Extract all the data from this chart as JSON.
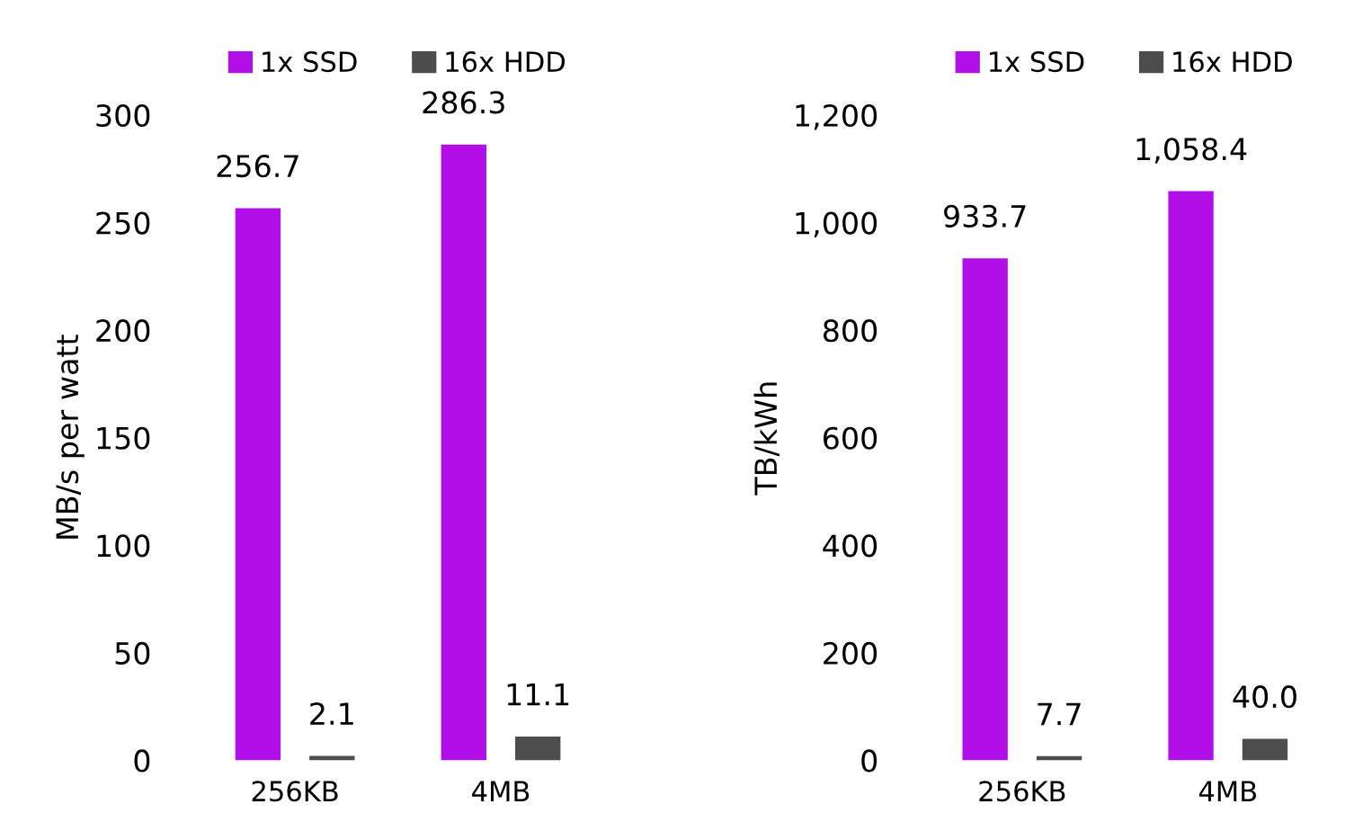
{
  "chart_data": [
    {
      "type": "bar",
      "ylabel": "MB/s per watt",
      "categories": [
        "256KB",
        "4MB"
      ],
      "series": [
        {
          "name": "1x SSD",
          "color": "#b10ee8",
          "values": [
            256.7,
            286.3
          ],
          "value_labels": [
            "256.7",
            "286.3"
          ]
        },
        {
          "name": "16x HDD",
          "color": "#4d4d4d",
          "values": [
            2.1,
            11.1
          ],
          "value_labels": [
            "2.1",
            "11.1"
          ]
        }
      ],
      "ylim": [
        0,
        300
      ],
      "yticks": [
        0,
        50,
        100,
        150,
        200,
        250,
        300
      ],
      "grid": false,
      "legend": "top"
    },
    {
      "type": "bar",
      "ylabel": "TB/kWh",
      "categories": [
        "256KB",
        "4MB"
      ],
      "series": [
        {
          "name": "1x SSD",
          "color": "#b10ee8",
          "values": [
            933.7,
            1058.4
          ],
          "value_labels": [
            "933.7",
            "1,058.4"
          ]
        },
        {
          "name": "16x HDD",
          "color": "#4d4d4d",
          "values": [
            7.7,
            40.0
          ],
          "value_labels": [
            "7.7",
            "40.0"
          ]
        }
      ],
      "ylim": [
        0,
        1200
      ],
      "yticks": [
        0,
        200,
        400,
        600,
        800,
        {
          "value": 1000,
          "label": "1,000"
        },
        {
          "value": 1200,
          "label": "1,200"
        }
      ],
      "grid": false,
      "legend": "top"
    }
  ]
}
